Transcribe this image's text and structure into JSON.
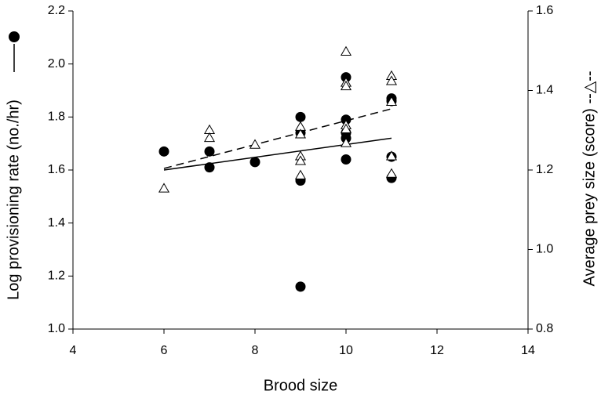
{
  "chart_data": {
    "type": "scatter",
    "xlabel": "Brood size",
    "ylabel": "Log provisioning rate (no./hr)",
    "y2label": "Average prey size (score) --△--",
    "xlim": [
      4,
      14
    ],
    "xticks": [
      4,
      6,
      8,
      10,
      12,
      14
    ],
    "ylim": [
      1.0,
      2.2
    ],
    "yticks": [
      {
        "value": 1.0,
        "label": "1.0"
      },
      1.2,
      1.4,
      1.6,
      1.8,
      {
        "value": 2.0,
        "label": "2.0"
      },
      2.2
    ],
    "y2lim": [
      0.8,
      1.6
    ],
    "y2ticks": [
      0.8,
      {
        "value": 1.0,
        "label": "1.0"
      },
      1.2,
      1.4,
      1.6
    ],
    "grid": false,
    "series": [
      {
        "type": "scatter",
        "marker": "circle",
        "color": "#000000",
        "x": [
          6,
          7,
          7,
          8,
          9,
          9,
          9,
          9,
          10,
          10,
          10,
          10,
          10,
          11,
          11,
          11,
          11
        ],
        "values": [
          1.67,
          1.67,
          1.61,
          1.63,
          1.8,
          1.74,
          1.56,
          1.16,
          1.95,
          1.79,
          1.74,
          1.72,
          1.64,
          1.87,
          1.86,
          1.65,
          1.57
        ]
      },
      {
        "type": "scatter",
        "marker": "triangle",
        "color": "#000000",
        "axis": "y2",
        "x": [
          6,
          7,
          7,
          8,
          9,
          9,
          9,
          9,
          9,
          10,
          10,
          10,
          10,
          10,
          10,
          11,
          11,
          11,
          11,
          11
        ],
        "values": [
          1.153,
          1.3,
          1.28,
          1.263,
          1.308,
          1.289,
          1.234,
          1.222,
          1.186,
          1.497,
          1.419,
          1.41,
          1.312,
          1.302,
          1.267,
          1.436,
          1.423,
          1.371,
          1.234,
          1.19
        ]
      },
      {
        "type": "line",
        "dash": false,
        "color": "#000000",
        "x": [
          6,
          11
        ],
        "values": [
          1.6,
          1.72
        ]
      },
      {
        "type": "line",
        "dash": true,
        "color": "#000000",
        "axis": "y2",
        "x": [
          6,
          11
        ],
        "values": [
          1.204,
          1.354
        ]
      }
    ]
  }
}
